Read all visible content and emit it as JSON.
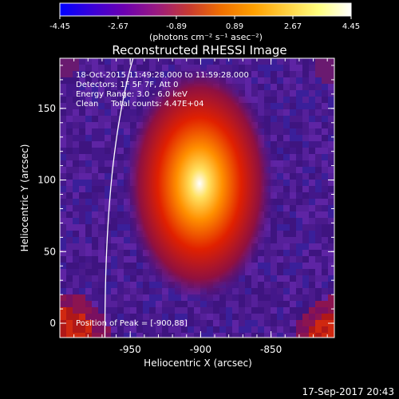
{
  "colorbar": {
    "ticks": [
      "-4.45",
      "-2.67",
      "-0.89",
      "0.89",
      "2.67",
      "4.45"
    ],
    "tick_values": [
      -4.45,
      -2.67,
      -0.89,
      0.89,
      2.67,
      4.45
    ],
    "units_label": "(photons cm⁻² s⁻¹ asec⁻²)",
    "colors": [
      "#0000ff",
      "#3a00d8",
      "#6d00b0",
      "#9a1a80",
      "#c83a30",
      "#f07000",
      "#ffa000",
      "#ffd040",
      "#ffff80",
      "#ffffff"
    ]
  },
  "chart_data": {
    "type": "heatmap",
    "title": "Reconstructed RHESSI Image",
    "xlabel": "Heliocentric X (arcsec)",
    "ylabel": "Heliocentric Y (arcsec)",
    "xlim": [
      -1000,
      -805
    ],
    "ylim": [
      -10,
      185
    ],
    "xticks": [
      "-950",
      "-900",
      "-850"
    ],
    "xtick_values": [
      -950,
      -900,
      -850
    ],
    "yticks": [
      "0",
      "50",
      "100",
      "150"
    ],
    "ytick_values": [
      0,
      50,
      100,
      150
    ],
    "peak": [
      -900,
      88
    ],
    "annotations": [
      "18-Oct-2015 11:49:28.000 to 11:59:28.000",
      "Detectors: 1F 5F 7F, Att 0",
      "Energy Range: 3.0 - 6.0 keV",
      "Clean     Total counts: 4.47E+04"
    ],
    "peak_label": "Position of Peak = [-900,88]"
  },
  "footer": {
    "timestamp": "17-Sep-2017 20:43"
  }
}
